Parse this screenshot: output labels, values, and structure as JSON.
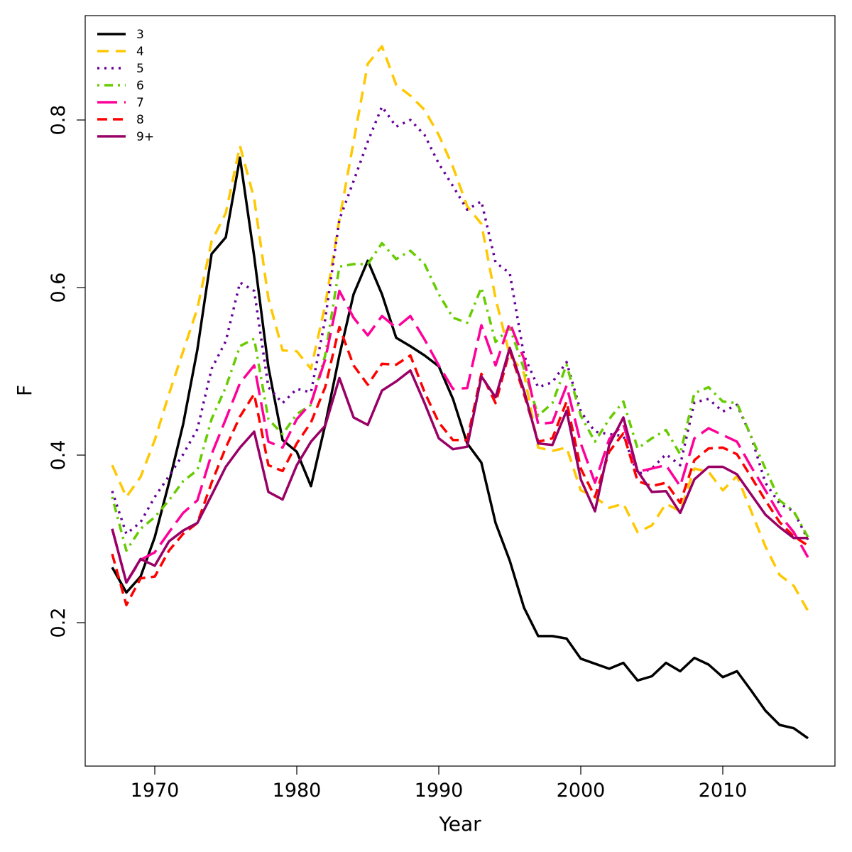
{
  "chart_data": {
    "type": "line",
    "title": "",
    "xlabel": "Year",
    "ylabel": "F",
    "xlim": [
      1965,
      2018
    ],
    "ylim": [
      0.025,
      0.92
    ],
    "xticks": [
      1970,
      1980,
      1990,
      2000,
      2010
    ],
    "xtick_labels": [
      "1970",
      "1980",
      "1990",
      "2000",
      "2010"
    ],
    "yticks": [
      0.2,
      0.4,
      0.6,
      0.8
    ],
    "ytick_labels": [
      "0.2",
      "0.4",
      "0.6",
      "0.8"
    ],
    "grid": false,
    "legend_position": "top-left",
    "x": [
      1967,
      1968,
      1969,
      1970,
      1971,
      1972,
      1973,
      1974,
      1975,
      1976,
      1977,
      1978,
      1979,
      1980,
      1981,
      1982,
      1983,
      1984,
      1985,
      1986,
      1987,
      1988,
      1989,
      1990,
      1991,
      1992,
      1993,
      1994,
      1995,
      1996,
      1997,
      1998,
      1999,
      2000,
      2001,
      2002,
      2003,
      2004,
      2005,
      2006,
      2007,
      2008,
      2009,
      2010,
      2011,
      2012,
      2013,
      2014,
      2015,
      2016
    ],
    "series": [
      {
        "name": "3",
        "color": "#000000",
        "dash": "",
        "values": [
          0.266,
          0.236,
          0.255,
          0.302,
          0.367,
          0.437,
          0.526,
          0.64,
          0.66,
          0.755,
          0.637,
          0.505,
          0.418,
          0.404,
          0.363,
          0.436,
          0.519,
          0.592,
          0.632,
          0.592,
          0.54,
          0.53,
          0.519,
          0.506,
          0.467,
          0.414,
          0.391,
          0.319,
          0.274,
          0.218,
          0.184,
          0.184,
          0.181,
          0.157,
          0.151,
          0.145,
          0.152,
          0.131,
          0.136,
          0.152,
          0.142,
          0.158,
          0.15,
          0.135,
          0.142,
          0.119,
          0.095,
          0.078,
          0.074,
          0.062
        ]
      },
      {
        "name": "4",
        "color": "#FFC800",
        "dash": "16 10",
        "values": [
          0.388,
          0.35,
          0.374,
          0.418,
          0.473,
          0.524,
          0.575,
          0.655,
          0.689,
          0.769,
          0.706,
          0.587,
          0.525,
          0.524,
          0.503,
          0.579,
          0.681,
          0.774,
          0.867,
          0.888,
          0.842,
          0.829,
          0.812,
          0.782,
          0.744,
          0.697,
          0.676,
          0.587,
          0.519,
          0.498,
          0.409,
          0.405,
          0.409,
          0.358,
          0.35,
          0.337,
          0.342,
          0.308,
          0.316,
          0.342,
          0.333,
          0.384,
          0.38,
          0.358,
          0.375,
          0.333,
          0.291,
          0.257,
          0.244,
          0.214
        ]
      },
      {
        "name": "5",
        "color": "#660099",
        "dash": "3 7",
        "values": [
          0.357,
          0.306,
          0.32,
          0.35,
          0.375,
          0.401,
          0.431,
          0.503,
          0.536,
          0.606,
          0.596,
          0.481,
          0.462,
          0.479,
          0.475,
          0.562,
          0.681,
          0.727,
          0.774,
          0.816,
          0.792,
          0.8,
          0.782,
          0.748,
          0.721,
          0.693,
          0.703,
          0.63,
          0.617,
          0.519,
          0.481,
          0.487,
          0.511,
          0.452,
          0.428,
          0.425,
          0.423,
          0.377,
          0.384,
          0.401,
          0.388,
          0.463,
          0.467,
          0.452,
          0.46,
          0.422,
          0.367,
          0.342,
          0.333,
          0.299
        ]
      },
      {
        "name": "6",
        "color": "#66CC00",
        "dash": "3 7 12 7",
        "values": [
          0.35,
          0.286,
          0.312,
          0.326,
          0.346,
          0.369,
          0.382,
          0.443,
          0.481,
          0.53,
          0.539,
          0.443,
          0.425,
          0.449,
          0.46,
          0.519,
          0.625,
          0.628,
          0.628,
          0.653,
          0.634,
          0.644,
          0.628,
          0.592,
          0.564,
          0.558,
          0.6,
          0.535,
          0.552,
          0.503,
          0.447,
          0.462,
          0.508,
          0.447,
          0.416,
          0.443,
          0.464,
          0.408,
          0.42,
          0.43,
          0.401,
          0.474,
          0.481,
          0.464,
          0.462,
          0.422,
          0.384,
          0.346,
          0.333,
          0.302
        ]
      },
      {
        "name": "7",
        "color": "#FF0099",
        "dash": "28 10",
        "values": [
          0.312,
          0.248,
          0.275,
          0.284,
          0.308,
          0.331,
          0.346,
          0.401,
          0.443,
          0.486,
          0.507,
          0.416,
          0.409,
          0.443,
          0.462,
          0.514,
          0.596,
          0.564,
          0.543,
          0.566,
          0.552,
          0.566,
          0.538,
          0.507,
          0.479,
          0.48,
          0.555,
          0.507,
          0.558,
          0.515,
          0.437,
          0.439,
          0.483,
          0.414,
          0.367,
          0.419,
          0.437,
          0.38,
          0.384,
          0.388,
          0.363,
          0.42,
          0.432,
          0.424,
          0.416,
          0.386,
          0.358,
          0.329,
          0.308,
          0.278
        ]
      },
      {
        "name": "8",
        "color": "#FF0000",
        "dash": "14 8",
        "values": [
          0.282,
          0.221,
          0.253,
          0.255,
          0.286,
          0.306,
          0.319,
          0.367,
          0.409,
          0.446,
          0.473,
          0.388,
          0.381,
          0.414,
          0.439,
          0.481,
          0.553,
          0.507,
          0.484,
          0.509,
          0.508,
          0.519,
          0.475,
          0.439,
          0.418,
          0.418,
          0.497,
          0.462,
          0.525,
          0.473,
          0.416,
          0.42,
          0.464,
          0.384,
          0.35,
          0.404,
          0.426,
          0.369,
          0.363,
          0.367,
          0.343,
          0.394,
          0.408,
          0.409,
          0.401,
          0.374,
          0.346,
          0.32,
          0.303,
          0.292
        ]
      },
      {
        "name": "9+",
        "color": "#990066",
        "dash": "",
        "values": [
          0.312,
          0.248,
          0.276,
          0.268,
          0.297,
          0.31,
          0.319,
          0.352,
          0.386,
          0.409,
          0.428,
          0.356,
          0.347,
          0.388,
          0.416,
          0.435,
          0.492,
          0.445,
          0.436,
          0.477,
          0.488,
          0.501,
          0.462,
          0.42,
          0.407,
          0.41,
          0.494,
          0.469,
          0.528,
          0.477,
          0.414,
          0.412,
          0.453,
          0.371,
          0.333,
          0.412,
          0.445,
          0.381,
          0.356,
          0.357,
          0.331,
          0.371,
          0.386,
          0.386,
          0.377,
          0.353,
          0.329,
          0.314,
          0.301,
          0.301
        ]
      }
    ]
  }
}
